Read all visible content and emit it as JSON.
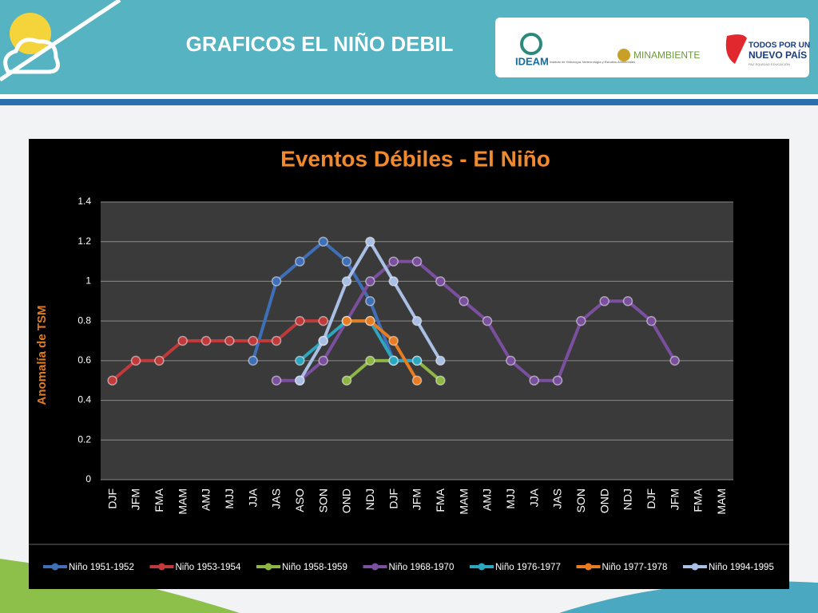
{
  "header": {
    "title": "GRAFICOS EL NIÑO DEBIL",
    "logo1": "IDEAM",
    "logo1_sub": "Instituto de Hidrología, Meteorología y Estudios Ambientales",
    "logo2": "MINAMBIENTE",
    "logo3_line1": "TODOS POR UN",
    "logo3_line2": "NUEVO PAÍS",
    "logo3_sub": "PAZ  EQUIDAD  EDUCACIÓN"
  },
  "chart_data": {
    "type": "line",
    "title": "Eventos Débiles -  El Niño",
    "y_label": "Anomalía de TSM",
    "categories": [
      "DJF",
      "JFM",
      "FMA",
      "MAM",
      "AMJ",
      "MJJ",
      "JJA",
      "JAS",
      "ASO",
      "SON",
      "OND",
      "NDJ",
      "DJF",
      "JFM",
      "FMA",
      "MAM",
      "AMJ",
      "MJJ",
      "JJA",
      "JAS",
      "SON",
      "OND",
      "NDJ",
      "DJF",
      "JFM",
      "FMA",
      "MAM"
    ],
    "ylim": [
      0,
      1.4
    ],
    "yticks": [
      0,
      0.2,
      0.4,
      0.6,
      0.8,
      1,
      1.2,
      1.4
    ],
    "grid": true,
    "legend": "bottom",
    "series": [
      {
        "name": "Niño 1951-1952",
        "color": "#3f6fb6",
        "values": [
          null,
          null,
          null,
          null,
          null,
          null,
          0.6,
          1.0,
          1.1,
          1.2,
          1.1,
          0.9,
          0.6,
          null,
          null,
          null,
          null,
          null,
          null,
          null,
          null,
          null,
          null,
          null,
          null,
          null,
          null
        ]
      },
      {
        "name": "Niño 1953-1954",
        "color": "#c0393b",
        "values": [
          0.5,
          0.6,
          0.6,
          0.7,
          0.7,
          0.7,
          0.7,
          0.7,
          0.8,
          0.8,
          null,
          null,
          null,
          null,
          null,
          null,
          null,
          null,
          null,
          null,
          null,
          null,
          null,
          null,
          null,
          null,
          null
        ]
      },
      {
        "name": "Niño 1958-1959",
        "color": "#8db644",
        "values": [
          null,
          null,
          null,
          null,
          null,
          null,
          null,
          null,
          null,
          null,
          0.5,
          0.6,
          0.6,
          0.6,
          0.5,
          null,
          null,
          null,
          null,
          null,
          null,
          null,
          null,
          null,
          null,
          null,
          null
        ]
      },
      {
        "name": "Niño 1968-1970",
        "color": "#7a4f9e",
        "values": [
          null,
          null,
          null,
          null,
          null,
          null,
          null,
          0.5,
          0.5,
          0.6,
          0.8,
          1.0,
          1.1,
          1.1,
          1.0,
          0.9,
          0.8,
          0.6,
          0.5,
          0.5,
          0.8,
          0.9,
          0.9,
          0.8,
          0.6,
          null,
          null
        ]
      },
      {
        "name": "Niño 1976-1977",
        "color": "#2ea6bf",
        "values": [
          null,
          null,
          null,
          null,
          null,
          null,
          null,
          null,
          0.6,
          0.7,
          0.8,
          0.8,
          0.6,
          0.6,
          null,
          null,
          null,
          null,
          null,
          null,
          null,
          null,
          null,
          null,
          null,
          null,
          null
        ]
      },
      {
        "name": "Niño 1977-1978",
        "color": "#e77c22",
        "values": [
          null,
          null,
          null,
          null,
          null,
          null,
          null,
          null,
          null,
          null,
          0.8,
          0.8,
          0.7,
          0.5,
          null,
          null,
          null,
          null,
          null,
          null,
          null,
          null,
          null,
          null,
          null,
          null,
          null
        ]
      },
      {
        "name": "Niño 1994-1995",
        "color": "#a9bfe3",
        "values": [
          null,
          null,
          null,
          null,
          null,
          null,
          null,
          null,
          0.5,
          0.7,
          1.0,
          1.2,
          1.0,
          0.8,
          0.6,
          null,
          null,
          null,
          null,
          null,
          null,
          null,
          null,
          null,
          null,
          null,
          null
        ]
      }
    ]
  }
}
